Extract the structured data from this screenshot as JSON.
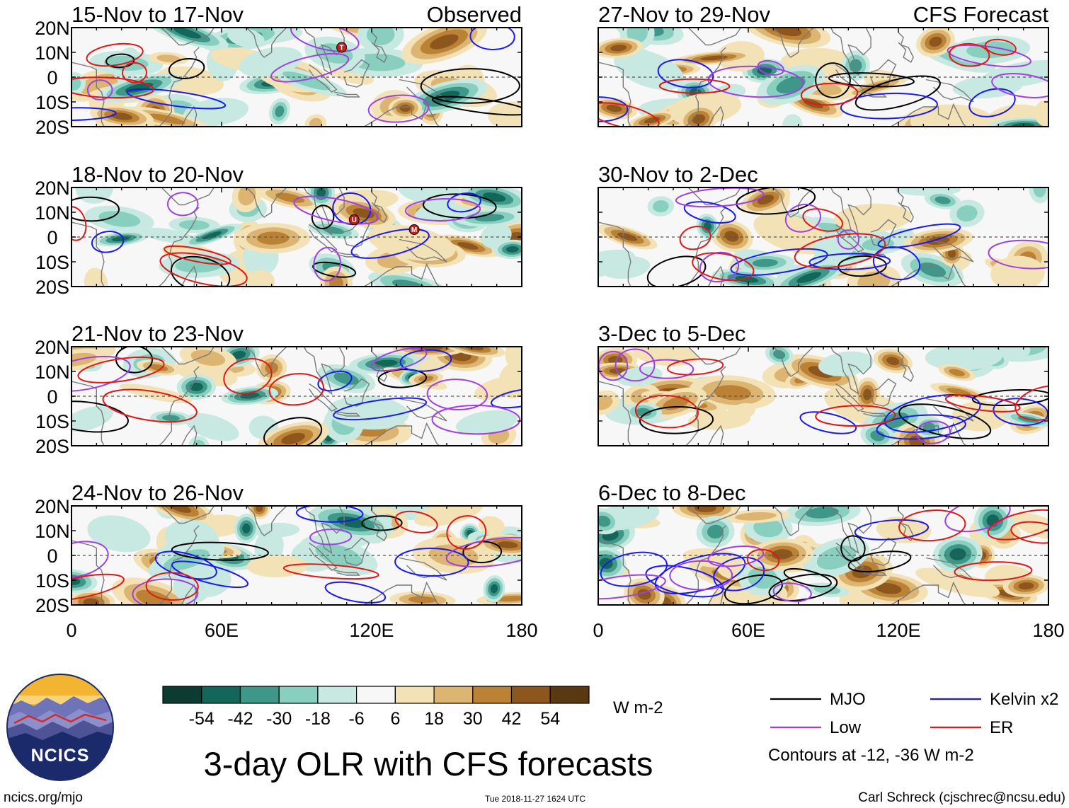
{
  "chart_data": {
    "type": "heatmap",
    "title": "3-day OLR with CFS forecasts",
    "variable": "3-day OLR anomaly",
    "units": "W m-2",
    "x": {
      "label": "",
      "range": [
        0,
        180
      ],
      "ticks": [
        0,
        60,
        120,
        180
      ],
      "tick_labels": [
        "0",
        "60E",
        "120E",
        "180"
      ]
    },
    "y": {
      "label": "",
      "range": [
        -20,
        20
      ],
      "ticks": [
        20,
        10,
        0,
        -10,
        -20
      ],
      "tick_labels": [
        "20N",
        "10N",
        "0",
        "10S",
        "20S"
      ]
    },
    "column_labels": [
      "Observed",
      "CFS Forecast"
    ],
    "panels": [
      {
        "period": "15-Nov to 17-Nov",
        "column": "Observed",
        "tc_markers": [
          "T"
        ]
      },
      {
        "period": "18-Nov to 20-Nov",
        "column": "Observed",
        "tc_markers": [
          "U",
          "M"
        ]
      },
      {
        "period": "21-Nov to 23-Nov",
        "column": "Observed",
        "tc_markers": []
      },
      {
        "period": "24-Nov to 26-Nov",
        "column": "Observed",
        "tc_markers": []
      },
      {
        "period": "27-Nov to 29-Nov",
        "column": "CFS Forecast",
        "tc_markers": []
      },
      {
        "period": "30-Nov to 2-Dec",
        "column": "CFS Forecast",
        "tc_markers": []
      },
      {
        "period": "3-Dec to 5-Dec",
        "column": "CFS Forecast",
        "tc_markers": []
      },
      {
        "period": "6-Dec to 8-Dec",
        "column": "CFS Forecast",
        "tc_markers": []
      }
    ],
    "colorbar": {
      "labels": [
        "-54",
        "-42",
        "-30",
        "-18",
        "-6",
        "6",
        "18",
        "30",
        "42",
        "54"
      ],
      "colors": [
        "#0b3b31",
        "#12665a",
        "#3f978a",
        "#88cfc0",
        "#c7e9e1",
        "#f7f7f7",
        "#f4e2b7",
        "#dcb572",
        "#bb8236",
        "#8d561d",
        "#5a3912"
      ],
      "units": "W m-2"
    },
    "contour_legend": [
      {
        "name": "MJO",
        "color": "#000000"
      },
      {
        "name": "Kelvin x2",
        "color": "#1a1aee"
      },
      {
        "name": "Low",
        "color": "#a040e0"
      },
      {
        "name": "ER",
        "color": "#e01818"
      }
    ],
    "contour_note": "Contours at -12, -36 W m-2"
  },
  "footer": {
    "logo_text": "NCICS",
    "url": "ncics.org/mjo",
    "timestamp": "Tue 2018-11-27 1624 UTC",
    "credit": "Carl Schreck (cjschrec@ncsu.edu)"
  }
}
